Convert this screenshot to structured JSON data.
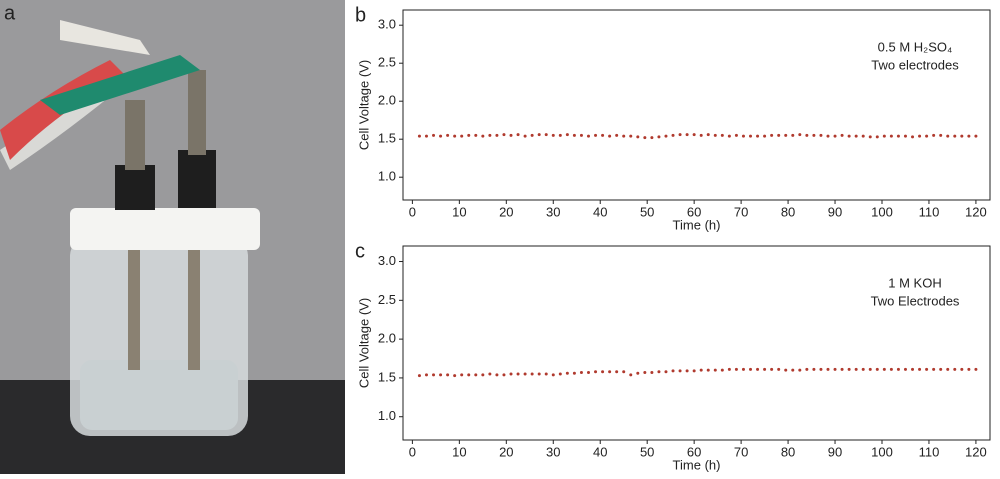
{
  "photo": {
    "label": "a"
  },
  "chart_data": [
    {
      "type": "scatter",
      "label": "b",
      "xlabel": "Time (h)",
      "ylabel": "Cell Voltage (V)",
      "annotation": [
        "0.5 M H₂SO₄",
        "Two electrodes"
      ],
      "xlim": [
        -2,
        123
      ],
      "ylim": [
        0.7,
        3.2
      ],
      "xticks": [
        0,
        10,
        20,
        30,
        40,
        50,
        60,
        70,
        80,
        90,
        100,
        110,
        120
      ],
      "yticks": [
        {
          "value": 1,
          "label": "1.0"
        },
        {
          "value": 1.5,
          "label": "1.5"
        },
        {
          "value": 2,
          "label": "2.0"
        },
        {
          "value": 2.5,
          "label": "2.5"
        },
        {
          "value": 3,
          "label": "3.0"
        }
      ],
      "color": "#b03a2e",
      "x": [
        1.5,
        3,
        4.5,
        6,
        7.5,
        9,
        10.5,
        12,
        13.5,
        15,
        16.5,
        18,
        19.5,
        21,
        22.5,
        24,
        25.5,
        27,
        28.5,
        30,
        31.5,
        33,
        34.5,
        36,
        37.5,
        39,
        40.5,
        42,
        43.5,
        45,
        46.5,
        48,
        49.5,
        51,
        52.5,
        54,
        55.5,
        57,
        58.5,
        60,
        61.5,
        63,
        64.5,
        66,
        67.5,
        69,
        70.5,
        72,
        73.5,
        75,
        76.5,
        78,
        79.5,
        81,
        82.5,
        84,
        85.5,
        87,
        88.5,
        90,
        91.5,
        93,
        94.5,
        96,
        97.5,
        99,
        100.5,
        102,
        103.5,
        105,
        106.5,
        108,
        109.5,
        111,
        112.5,
        114,
        115.5,
        117,
        118.5,
        120
      ],
      "values": [
        1.54,
        1.54,
        1.55,
        1.54,
        1.55,
        1.54,
        1.54,
        1.55,
        1.55,
        1.54,
        1.55,
        1.55,
        1.56,
        1.55,
        1.56,
        1.54,
        1.55,
        1.56,
        1.56,
        1.55,
        1.55,
        1.56,
        1.55,
        1.55,
        1.54,
        1.55,
        1.55,
        1.54,
        1.55,
        1.54,
        1.54,
        1.53,
        1.52,
        1.52,
        1.53,
        1.54,
        1.55,
        1.56,
        1.56,
        1.56,
        1.55,
        1.56,
        1.55,
        1.55,
        1.54,
        1.55,
        1.54,
        1.54,
        1.54,
        1.54,
        1.55,
        1.55,
        1.55,
        1.55,
        1.56,
        1.55,
        1.55,
        1.55,
        1.54,
        1.54,
        1.55,
        1.54,
        1.54,
        1.54,
        1.53,
        1.53,
        1.54,
        1.54,
        1.54,
        1.54,
        1.53,
        1.54,
        1.54,
        1.55,
        1.55,
        1.54,
        1.54,
        1.54,
        1.54,
        1.54
      ]
    },
    {
      "type": "scatter",
      "label": "c",
      "xlabel": "Time (h)",
      "ylabel": "Cell Voltage (V)",
      "annotation": [
        "1 M KOH",
        "Two Electrodes"
      ],
      "xlim": [
        -2,
        123
      ],
      "ylim": [
        0.7,
        3.2
      ],
      "xticks": [
        0,
        10,
        20,
        30,
        40,
        50,
        60,
        70,
        80,
        90,
        100,
        110,
        120
      ],
      "yticks": [
        {
          "value": 1,
          "label": "1.0"
        },
        {
          "value": 1.5,
          "label": "1.5"
        },
        {
          "value": 2,
          "label": "2.0"
        },
        {
          "value": 2.5,
          "label": "2.5"
        },
        {
          "value": 3,
          "label": "3.0"
        }
      ],
      "color": "#b03a2e",
      "x": [
        1.5,
        3,
        4.5,
        6,
        7.5,
        9,
        10.5,
        12,
        13.5,
        15,
        16.5,
        18,
        19.5,
        21,
        22.5,
        24,
        25.5,
        27,
        28.5,
        30,
        31.5,
        33,
        34.5,
        36,
        37.5,
        39,
        40.5,
        42,
        43.5,
        45,
        46.5,
        48,
        49.5,
        51,
        52.5,
        54,
        55.5,
        57,
        58.5,
        60,
        61.5,
        63,
        64.5,
        66,
        67.5,
        69,
        70.5,
        72,
        73.5,
        75,
        76.5,
        78,
        79.5,
        81,
        82.5,
        84,
        85.5,
        87,
        88.5,
        90,
        91.5,
        93,
        94.5,
        96,
        97.5,
        99,
        100.5,
        102,
        103.5,
        105,
        106.5,
        108,
        109.5,
        111,
        112.5,
        114,
        115.5,
        117,
        118.5,
        120
      ],
      "values": [
        1.53,
        1.54,
        1.54,
        1.54,
        1.54,
        1.53,
        1.54,
        1.54,
        1.54,
        1.54,
        1.55,
        1.54,
        1.54,
        1.55,
        1.55,
        1.55,
        1.55,
        1.55,
        1.55,
        1.54,
        1.55,
        1.56,
        1.56,
        1.57,
        1.57,
        1.58,
        1.58,
        1.58,
        1.58,
        1.58,
        1.54,
        1.56,
        1.57,
        1.57,
        1.58,
        1.58,
        1.59,
        1.59,
        1.59,
        1.59,
        1.6,
        1.6,
        1.6,
        1.6,
        1.61,
        1.61,
        1.61,
        1.61,
        1.61,
        1.61,
        1.61,
        1.61,
        1.6,
        1.6,
        1.6,
        1.61,
        1.61,
        1.61,
        1.61,
        1.61,
        1.61,
        1.61,
        1.61,
        1.61,
        1.61,
        1.61,
        1.61,
        1.61,
        1.61,
        1.61,
        1.61,
        1.61,
        1.61,
        1.61,
        1.61,
        1.61,
        1.61,
        1.61,
        1.61,
        1.61
      ]
    }
  ]
}
